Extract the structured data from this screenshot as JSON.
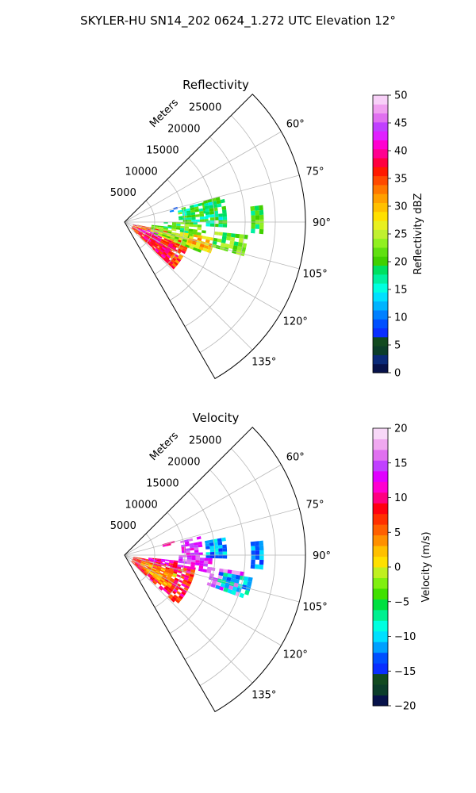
{
  "figure": {
    "suptitle": "SKYLER-HU  SN14_202  0624_1.272 UTC Elevation 12°"
  },
  "chart_data": [
    {
      "type": "heatmap",
      "projection": "polar-sector",
      "title": "Reflectivity",
      "range_label": "Meters",
      "range_ticks": [
        5000,
        10000,
        15000,
        20000,
        25000
      ],
      "range_tick_labels": [
        "5000",
        "10000",
        "15000",
        "20000",
        "25000"
      ],
      "range_max": 30000,
      "azimuth_range_deg": [
        45,
        150
      ],
      "azimuth_ticks": [
        60,
        75,
        90,
        105,
        120,
        135
      ],
      "azimuth_tick_labels": [
        "60°",
        "75°",
        "90°",
        "105°",
        "120°",
        "135°"
      ],
      "grid": true,
      "colorbar": {
        "label": "Reflectivity dBZ",
        "min": 0,
        "max": 50,
        "ticks": [
          0,
          5,
          10,
          15,
          20,
          25,
          30,
          35,
          40,
          45,
          50
        ],
        "tick_labels": [
          "0",
          "5",
          "10",
          "15",
          "20",
          "25",
          "30",
          "35",
          "40",
          "45",
          "50"
        ]
      },
      "echo_regions": [
        {
          "az_min": 102,
          "az_max": 134,
          "r_min": 1500,
          "r_max": 11000,
          "value": 35
        },
        {
          "az_min": 108,
          "az_max": 122,
          "r_min": 2500,
          "r_max": 6500,
          "value": 43
        },
        {
          "az_min": 115,
          "az_max": 132,
          "r_min": 4000,
          "r_max": 9000,
          "value": 38
        },
        {
          "az_min": 96,
          "az_max": 112,
          "r_min": 4500,
          "r_max": 13000,
          "value": 24
        },
        {
          "az_min": 100,
          "az_max": 110,
          "r_min": 11000,
          "r_max": 15000,
          "value": 30
        },
        {
          "az_min": 90,
          "az_max": 100,
          "r_min": 6500,
          "r_max": 12500,
          "value": 21
        },
        {
          "az_min": 96,
          "az_max": 106,
          "r_min": 15000,
          "r_max": 20500,
          "value": 22
        },
        {
          "az_min": 76,
          "az_max": 90,
          "r_min": 9000,
          "r_max": 13500,
          "value": 19
        },
        {
          "az_min": 75,
          "az_max": 92,
          "r_min": 13500,
          "r_max": 17000,
          "value": 18
        },
        {
          "az_min": 83,
          "az_max": 95,
          "r_min": 21000,
          "r_max": 23000,
          "value": 20
        },
        {
          "az_min": 74,
          "az_max": 78,
          "r_min": 7000,
          "r_max": 8500,
          "value": 9
        }
      ]
    },
    {
      "type": "heatmap",
      "projection": "polar-sector",
      "title": "Velocity",
      "range_label": "Meters",
      "range_ticks": [
        5000,
        10000,
        15000,
        20000,
        25000
      ],
      "range_tick_labels": [
        "5000",
        "10000",
        "15000",
        "20000",
        "25000"
      ],
      "range_max": 30000,
      "azimuth_range_deg": [
        45,
        150
      ],
      "azimuth_ticks": [
        60,
        75,
        90,
        105,
        120,
        135
      ],
      "azimuth_tick_labels": [
        "60°",
        "75°",
        "90°",
        "105°",
        "120°",
        "135°"
      ],
      "grid": true,
      "colorbar": {
        "label": "Velocity (m/s)",
        "min": -20,
        "max": 20,
        "ticks": [
          -20,
          -15,
          -10,
          -5,
          0,
          5,
          10,
          15,
          20
        ],
        "tick_labels": [
          "−20",
          "−15",
          "−10",
          "−5",
          "0",
          "5",
          "10",
          "15",
          "20"
        ]
      },
      "echo_regions": [
        {
          "az_min": 100,
          "az_max": 134,
          "r_min": 1500,
          "r_max": 11500,
          "value": 8
        },
        {
          "az_min": 108,
          "az_max": 128,
          "r_min": 3000,
          "r_max": 9000,
          "value": 3
        },
        {
          "az_min": 96,
          "az_max": 104,
          "r_min": 4000,
          "r_max": 9000,
          "value": 11
        },
        {
          "az_min": 90,
          "az_max": 102,
          "r_min": 9000,
          "r_max": 14500,
          "value": 14
        },
        {
          "az_min": 98,
          "az_max": 110,
          "r_min": 14500,
          "r_max": 20000,
          "value": 15
        },
        {
          "az_min": 100,
          "az_max": 110,
          "r_min": 16000,
          "r_max": 21000,
          "value": -10
        },
        {
          "az_min": 76,
          "az_max": 90,
          "r_min": 9500,
          "r_max": 13000,
          "value": 14
        },
        {
          "az_min": 80,
          "az_max": 92,
          "r_min": 13500,
          "r_max": 16500,
          "value": -11
        },
        {
          "az_min": 84,
          "az_max": 96,
          "r_min": 21000,
          "r_max": 23000,
          "value": -12
        },
        {
          "az_min": 74,
          "az_max": 78,
          "r_min": 6500,
          "r_max": 8000,
          "value": 9
        }
      ]
    }
  ],
  "colormaps": {
    "reflectivity": [
      "#07124a",
      "#0a2a78",
      "#0b3d2a",
      "#124a20",
      "#0a2fff",
      "#0050ff",
      "#0080ff",
      "#00b4ff",
      "#00e0ff",
      "#00ffe0",
      "#00f0a0",
      "#00e060",
      "#40d000",
      "#60e010",
      "#90f020",
      "#c0f030",
      "#e8f020",
      "#ffe000",
      "#ffc000",
      "#ffa000",
      "#ff7800",
      "#ff4a00",
      "#ff1a00",
      "#ff0040",
      "#ff0090",
      "#ff00d0",
      "#e020ff",
      "#c040ff",
      "#e070f0",
      "#f0a0f0",
      "#f8d0f8"
    ],
    "velocity": [
      "#07124a",
      "#0b3d2a",
      "#124a20",
      "#0a2fff",
      "#0050ff",
      "#00a0ff",
      "#00e0ff",
      "#00ffe0",
      "#00f090",
      "#00e040",
      "#40e000",
      "#80f010",
      "#c0f020",
      "#ffe000",
      "#ffc000",
      "#ff9000",
      "#ff6000",
      "#ff3000",
      "#ff0010",
      "#ff0080",
      "#ff00d0",
      "#e000ff",
      "#c040ff",
      "#e070f0",
      "#f0a8f0",
      "#f8d8f8"
    ]
  }
}
